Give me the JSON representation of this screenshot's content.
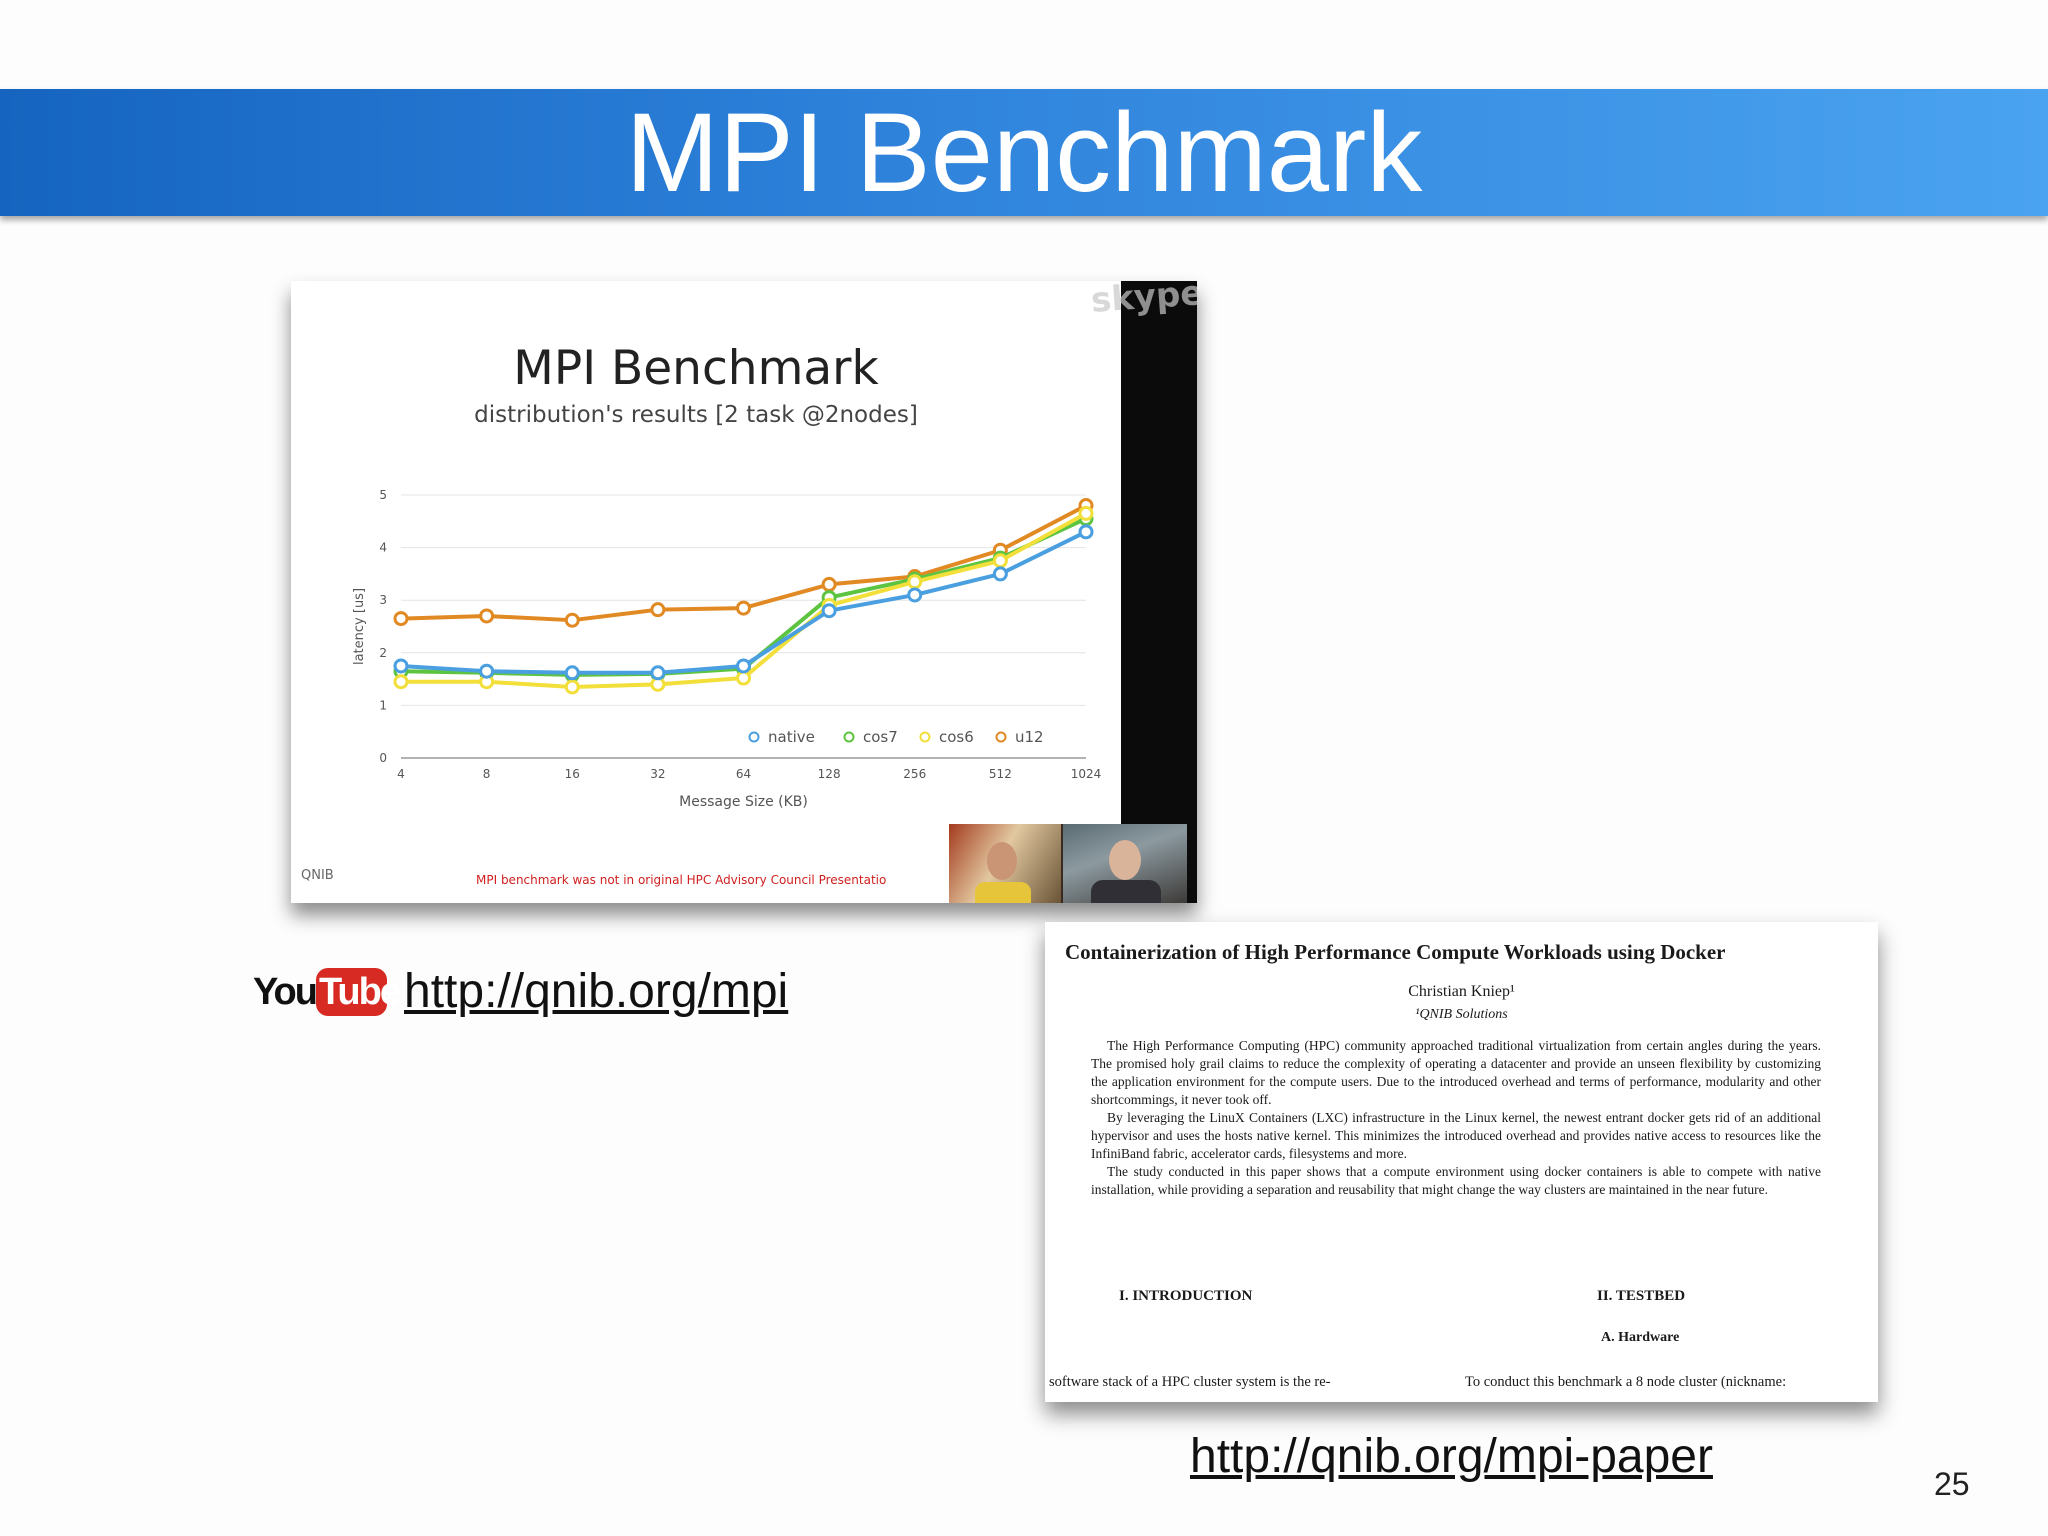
{
  "slide": {
    "title": "MPI Benchmark",
    "page_number": "25"
  },
  "video": {
    "watermark": "skype",
    "slide_title": "MPI Benchmark",
    "slide_subtitle": "distribution's results [2 task @2nodes]",
    "logo": "QNIB",
    "footnote": "MPI benchmark was not in original HPC Advisory Council Presentatio"
  },
  "chart_data": {
    "type": "line",
    "title": "MPI Benchmark",
    "subtitle": "distribution's results [2 task @2nodes]",
    "xlabel": "Message Size (KB)",
    "ylabel": "latency [us]",
    "categories": [
      "4",
      "8",
      "16",
      "32",
      "64",
      "128",
      "256",
      "512",
      "1024"
    ],
    "ylim": [
      0,
      5
    ],
    "yticks": [
      "0",
      "1",
      "2",
      "3",
      "4",
      "5"
    ],
    "grid": true,
    "legend_position": "bottom-right",
    "series": [
      {
        "name": "native",
        "color": "#4a9fe0",
        "values": [
          1.75,
          1.65,
          1.62,
          1.62,
          1.75,
          2.8,
          3.1,
          3.5,
          4.3
        ]
      },
      {
        "name": "cos7",
        "color": "#5cc441",
        "values": [
          1.65,
          1.62,
          1.58,
          1.6,
          1.7,
          3.05,
          3.4,
          3.8,
          4.55
        ]
      },
      {
        "name": "cos6",
        "color": "#f2df3a",
        "values": [
          1.45,
          1.45,
          1.35,
          1.4,
          1.52,
          2.9,
          3.35,
          3.75,
          4.65
        ]
      },
      {
        "name": "u12",
        "color": "#e18a23",
        "values": [
          2.65,
          2.7,
          2.62,
          2.82,
          2.85,
          3.3,
          3.45,
          3.95,
          4.8
        ]
      }
    ]
  },
  "links": {
    "youtube_you": "You",
    "youtube_tube": "Tube",
    "mpi_url": "http://qnib.org/mpi",
    "paper_url": "http://qnib.org/mpi-paper"
  },
  "paper": {
    "title": "Containerization of High Performance Compute Workloads using Docker",
    "author": "Christian Kniep¹",
    "affiliation": "¹QNIB Solutions",
    "abstract": [
      "The High Performance Computing (HPC) community approached traditional virtualization from certain angles during the years. The promised holy grail claims to reduce the complexity of operating a datacenter and provide an unseen flexibility by customizing the application environment for the compute users. Due to the introduced overhead and terms of performance, modularity and other shortcommings, it never took off.",
      "By leveraging the LinuX Containers (LXC) infrastructure in the Linux kernel, the newest entrant docker gets rid of an additional hypervisor and uses the hosts native kernel. This minimizes the introduced overhead and provides native access to resources like the InfiniBand fabric, accelerator cards, filesystems and more.",
      "The study conducted in this paper shows that a compute environment using docker containers is able to compete with native installation, while providing a separation and reusability that might change the way clusters are maintained in the near future."
    ],
    "section_intro": "I.   INTRODUCTION",
    "section_testbed": "II.   TESTBED",
    "subsection_hardware": "A.   Hardware",
    "body_left": "software stack of a HPC cluster system is the re-",
    "body_right": "To conduct this benchmark a 8 node cluster (nickname:"
  }
}
